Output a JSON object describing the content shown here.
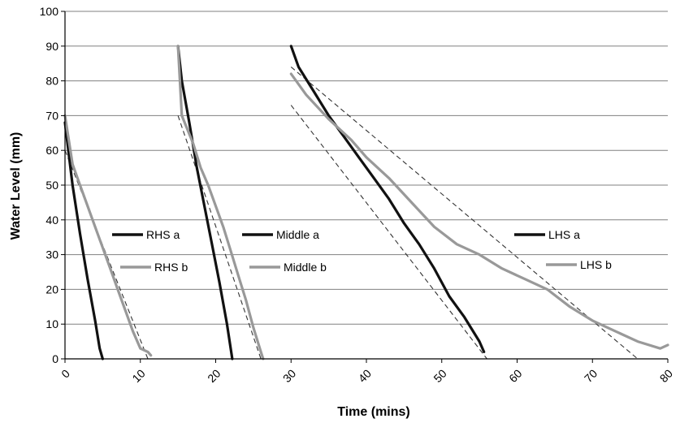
{
  "chart_data": {
    "type": "line",
    "title": "",
    "xlabel": "Time (mins)",
    "ylabel": "Water Level (mm)",
    "xlim": [
      0,
      80
    ],
    "ylim": [
      0,
      100
    ],
    "xticks": [
      0,
      10,
      20,
      30,
      40,
      50,
      60,
      70,
      80
    ],
    "yticks": [
      0,
      10,
      20,
      30,
      40,
      50,
      60,
      70,
      80,
      90,
      100
    ],
    "grid": "horizontal",
    "legend": "inline labels",
    "colors": {
      "a": "#111111",
      "b": "#999999",
      "fit": "#333333",
      "grid": "#808080"
    },
    "series": [
      {
        "name": "RHS a",
        "color": "#111111",
        "x": [
          0,
          1,
          2,
          3,
          4,
          4.6,
          5.0
        ],
        "y": [
          68,
          50,
          36,
          23,
          11,
          3,
          0
        ]
      },
      {
        "name": "RHS b",
        "color": "#999999",
        "x": [
          0,
          1,
          2,
          3,
          4,
          5,
          6,
          7,
          8,
          9,
          10,
          11,
          11.4
        ],
        "y": [
          70,
          56,
          50,
          44,
          38,
          32,
          26,
          20,
          14,
          8,
          3,
          2,
          1
        ]
      },
      {
        "name": "Middle a",
        "color": "#111111",
        "x": [
          15,
          15.5,
          16.5,
          17.5,
          18.5,
          19.5,
          20.5,
          21.5,
          22.2
        ],
        "y": [
          90,
          80,
          68,
          55,
          44,
          33,
          22,
          10,
          0
        ]
      },
      {
        "name": "Middle b",
        "color": "#999999",
        "x": [
          15,
          15.5,
          17,
          18,
          19,
          20,
          21,
          22,
          23,
          24,
          25,
          26,
          26.3
        ],
        "y": [
          90,
          70,
          62,
          55,
          50,
          44,
          38,
          31,
          24,
          17,
          9,
          2,
          0
        ]
      },
      {
        "name": "LHS a",
        "color": "#111111",
        "x": [
          30,
          31,
          33,
          35,
          37,
          39,
          41,
          43,
          45,
          47,
          49,
          51,
          53,
          55,
          55.6
        ],
        "y": [
          90,
          84,
          77,
          70,
          64,
          58,
          52,
          46,
          39,
          33,
          26,
          18,
          12,
          5,
          2
        ]
      },
      {
        "name": "LHS b",
        "color": "#999999",
        "x": [
          30,
          32,
          35,
          38,
          40,
          43,
          46,
          49,
          52,
          55,
          58,
          61,
          64,
          67,
          70,
          73,
          76,
          79,
          80
        ],
        "y": [
          82,
          76,
          69,
          63,
          58,
          52,
          45,
          38,
          33,
          30,
          26,
          23,
          20,
          15,
          11,
          8,
          5,
          3,
          4
        ]
      }
    ],
    "trendlines": [
      {
        "x": [
          0,
          11
        ],
        "y": [
          60,
          0
        ]
      },
      {
        "x": [
          15,
          26
        ],
        "y": [
          70,
          0
        ]
      },
      {
        "x": [
          30,
          56
        ],
        "y": [
          73,
          0
        ]
      },
      {
        "x": [
          30,
          76
        ],
        "y": [
          84,
          0
        ]
      }
    ]
  }
}
